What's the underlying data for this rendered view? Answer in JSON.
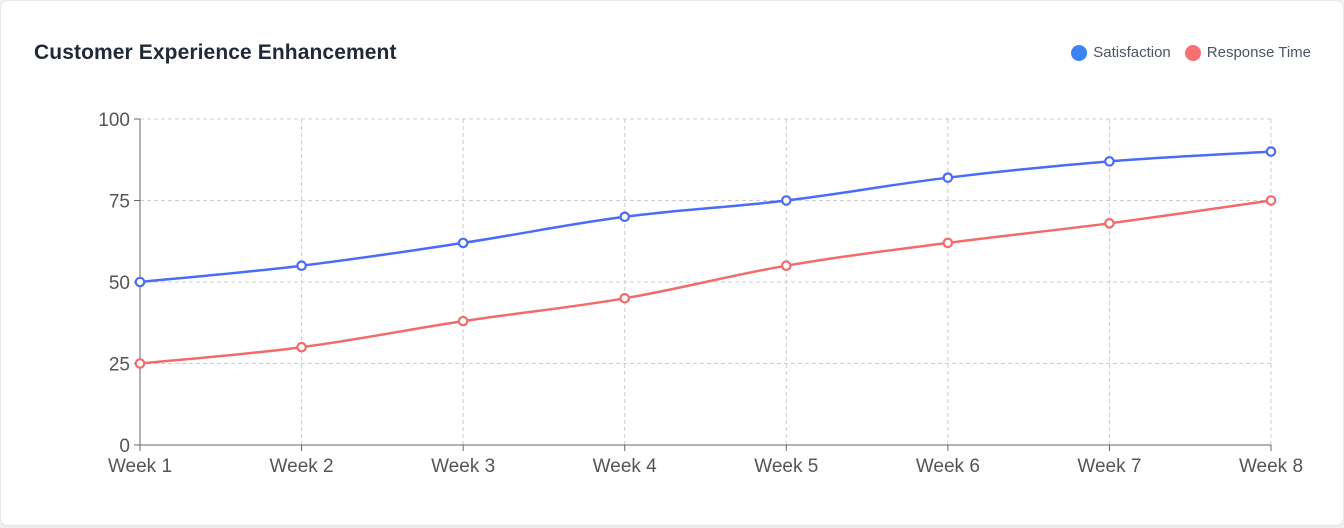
{
  "chart_data": {
    "type": "line",
    "title": "Customer Experience Enhancement",
    "categories": [
      "Week 1",
      "Week 2",
      "Week 3",
      "Week 4",
      "Week 5",
      "Week 6",
      "Week 7",
      "Week 8"
    ],
    "series": [
      {
        "name": "Satisfaction",
        "color": "#4a6cf7",
        "legend_color": "#3b82f6",
        "values": [
          50,
          55,
          62,
          70,
          75,
          82,
          87,
          90
        ]
      },
      {
        "name": "Response Time",
        "color": "#f26b6b",
        "legend_color": "#f87171",
        "values": [
          25,
          30,
          38,
          45,
          55,
          62,
          68,
          75
        ]
      }
    ],
    "ylim": [
      0,
      100
    ],
    "yticks": [
      0,
      25,
      50,
      75,
      100
    ],
    "grid": true,
    "legend_position": "top-right"
  }
}
